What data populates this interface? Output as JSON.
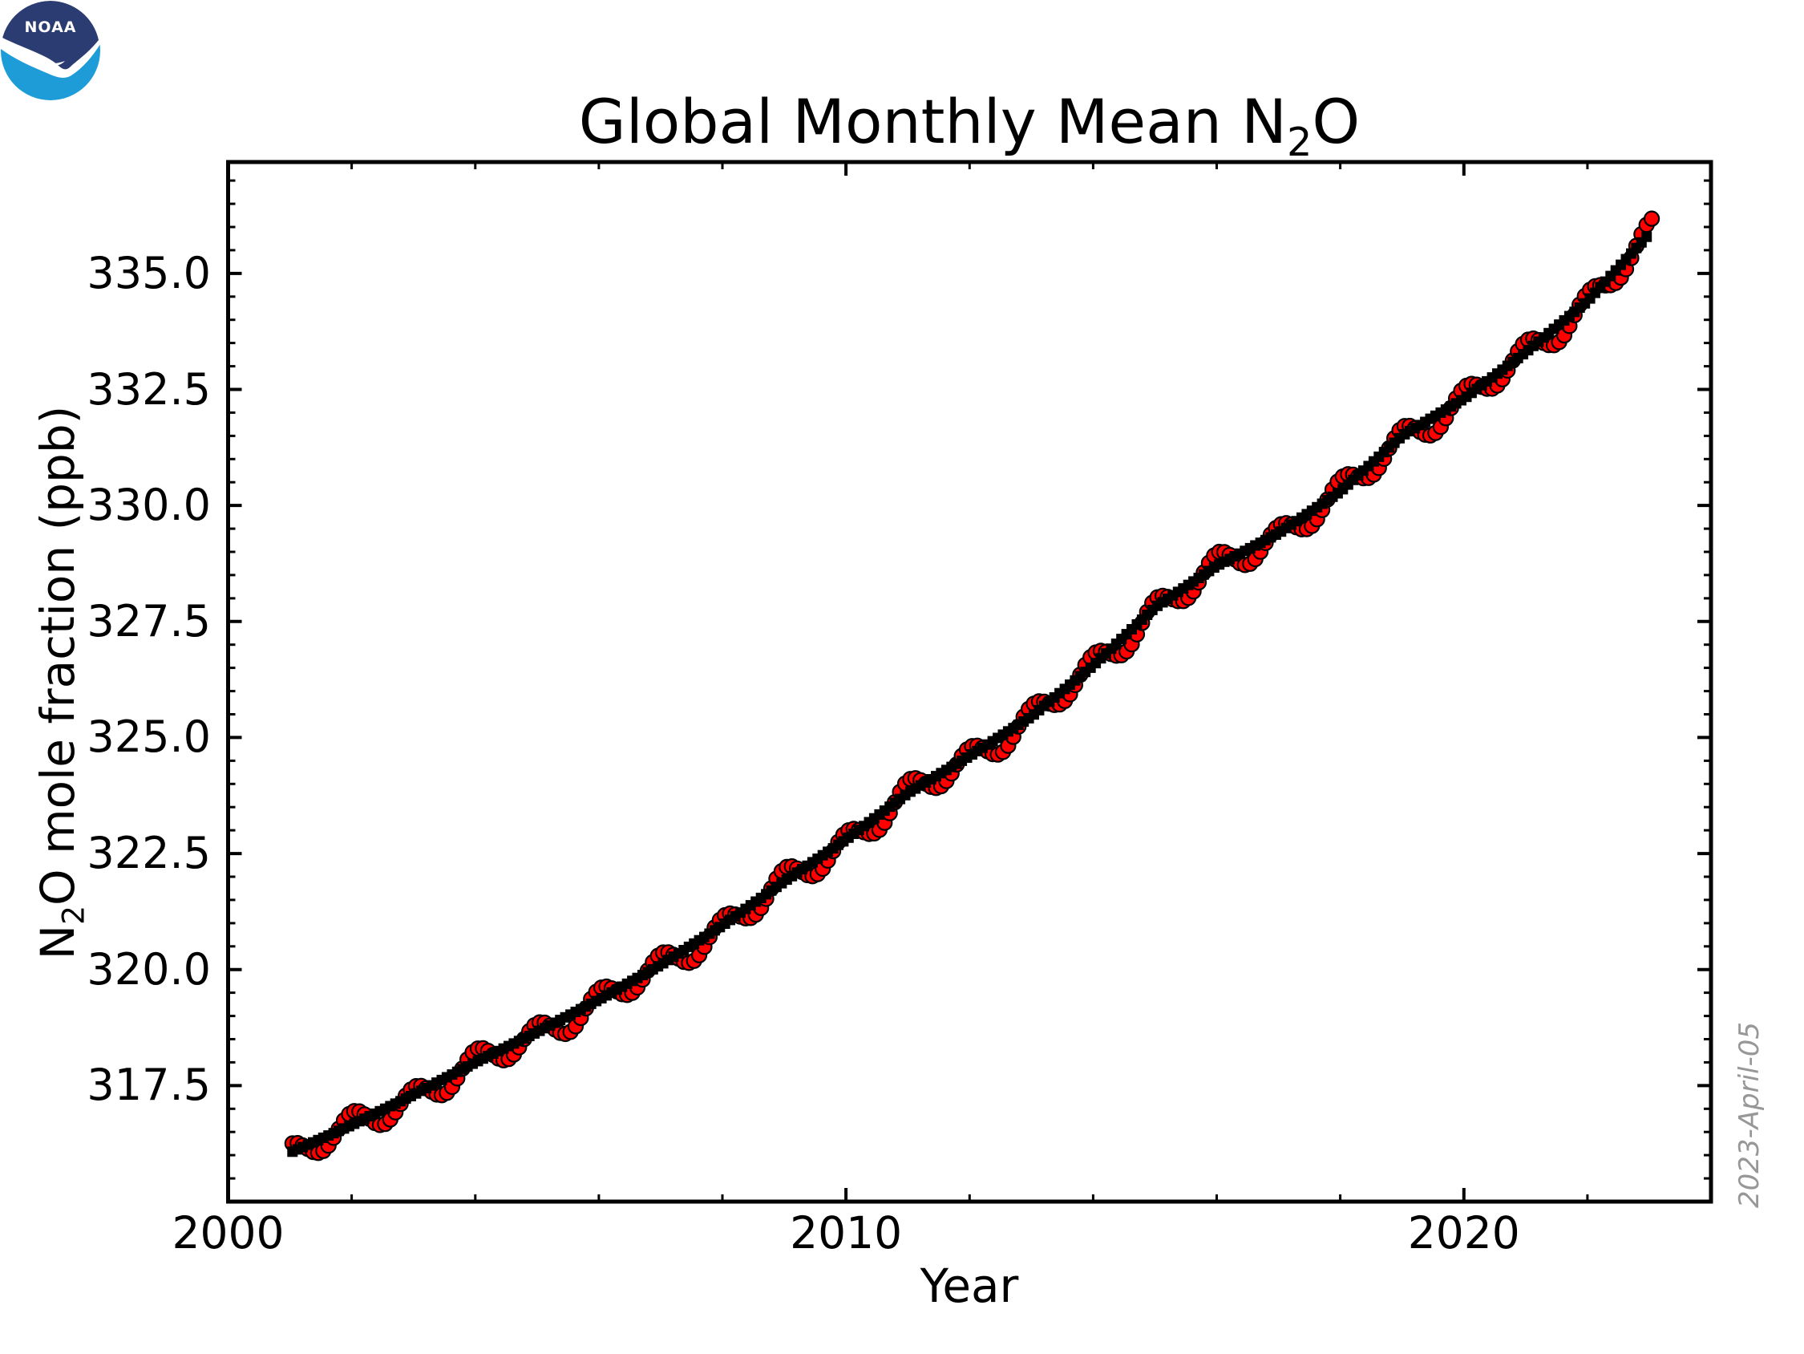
{
  "figure": {
    "title_parts": {
      "pre": "Global Monthly Mean N",
      "sub": "2",
      "post": "O"
    },
    "xlabel": "Year",
    "ylabel_parts": {
      "pre": "N",
      "sub": "2",
      "post": "O mole fraction (ppb)"
    },
    "watermark": "2023-April-05",
    "logo_text": "NOAA",
    "background": "#ffffff",
    "colors": {
      "monthly_marker": "#ff0000",
      "marker_edge": "#000000",
      "trend_marker": "#000000",
      "axis": "#000000",
      "watermark_text": "#979797",
      "logo_navy": "#2b3c72",
      "logo_blue": "#1e9cd8"
    }
  },
  "chart_data": {
    "type": "scatter",
    "title": "Global Monthly Mean N2O",
    "xlabel": "Year",
    "ylabel": "N2O mole fraction (ppb)",
    "xlim": [
      2000.0,
      2024.0
    ],
    "ylim": [
      315.0,
      337.4
    ],
    "grid": false,
    "legend": "none",
    "x_major_ticks": [
      2000,
      2010,
      2020
    ],
    "x_tick_labels": [
      "2000",
      "2010",
      "2020"
    ],
    "x_minor_step_years": 2,
    "y_major_ticks": [
      317.5,
      320.0,
      322.5,
      325.0,
      327.5,
      330.0,
      332.5,
      335.0
    ],
    "y_tick_labels": [
      "317.5",
      "320.0",
      "322.5",
      "325.0",
      "327.5",
      "330.0",
      "332.5",
      "335.0"
    ],
    "y_minor_step": 0.5,
    "ticks_direction": "in",
    "ticks_on_all_sides": true,
    "series": [
      {
        "name": "monthly mean",
        "marker": "circle",
        "color": "#ff0000",
        "edge": "#000000",
        "marker_radius_px": 9,
        "cadence": "monthly"
      },
      {
        "name": "deseasonalized trend",
        "marker": "square",
        "color": "#000000",
        "marker_size_px": 13,
        "cadence": "monthly"
      }
    ],
    "monthly_range": [
      "2001-01",
      "2023-01"
    ],
    "n_monthly_points": 265,
    "trend_anchors_jan1": {
      "2001": 316.05,
      "2002": 316.65,
      "2003": 317.3,
      "2004": 318.0,
      "2005": 318.65,
      "2006": 319.35,
      "2007": 320.1,
      "2008": 320.95,
      "2009": 321.9,
      "2010": 322.8,
      "2011": 323.8,
      "2012": 324.6,
      "2013": 325.45,
      "2014": 326.55,
      "2015": 327.8,
      "2016": 328.7,
      "2017": 329.4,
      "2018": 330.3,
      "2019": 331.5,
      "2020": 332.3,
      "2021": 333.3,
      "2022": 334.4,
      "2023": 335.85,
      "2024": 337.3
    },
    "seasonal": {
      "amplitude": 0.27,
      "offset": -0.05,
      "peak_year_fraction": 0.02,
      "irregularity": 0.06
    }
  }
}
